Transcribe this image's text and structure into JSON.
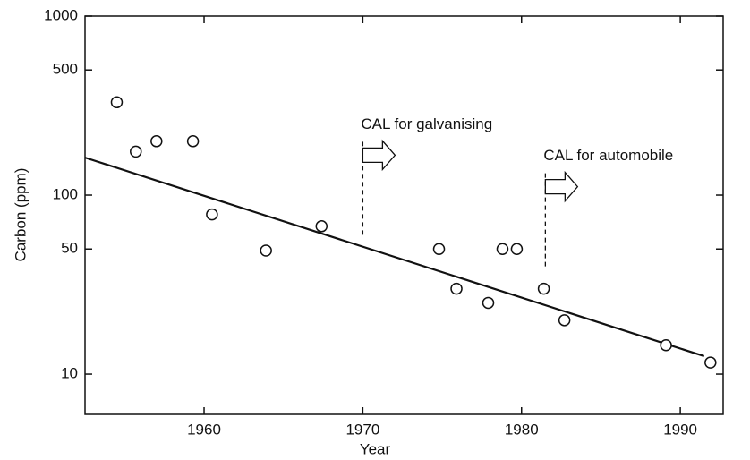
{
  "chart_data": {
    "type": "scatter",
    "log_y": true,
    "x_label": "Year",
    "y_label": "Carbon (ppm)",
    "x": [
      1954.5,
      1955.7,
      1957.0,
      1959.3,
      1960.5,
      1963.9,
      1967.4,
      1974.8,
      1975.9,
      1977.9,
      1978.8,
      1979.7,
      1981.4,
      1982.7,
      1989.1,
      1991.9
    ],
    "values": [
      330,
      175,
      200,
      200,
      78,
      49,
      67,
      50,
      30,
      25,
      50,
      50,
      30,
      20,
      14.5,
      11.6
    ],
    "color": "#111111",
    "trend_line": {
      "x": [
        1952.5,
        1991.5
      ],
      "y": [
        162,
        12.6
      ]
    },
    "annotations": [
      {
        "text": "CAL for galvanising",
        "x": 1970,
        "y": 60
      },
      {
        "text": "CAL for automobile",
        "x": 1981.5,
        "y": 40
      }
    ],
    "xlim": [
      1952.5,
      1992.7
    ],
    "xticks": [
      1960,
      1970,
      1980,
      1990
    ],
    "ylim": [
      5.96,
      1000
    ],
    "yticks": [
      10,
      50,
      100,
      500,
      1000
    ]
  }
}
